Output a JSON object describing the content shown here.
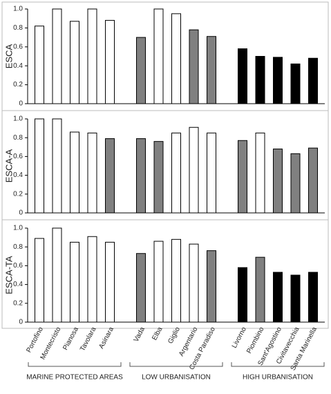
{
  "chart_data": [
    {
      "type": "bar",
      "ylabel": "ESCA",
      "values": [
        [
          0.82,
          1.0,
          0.87,
          1.0,
          0.88
        ],
        [
          0.7,
          1.0,
          0.95,
          0.78,
          0.71
        ],
        [
          0.58,
          0.5,
          0.49,
          0.42,
          0.48
        ]
      ],
      "colors": [
        [
          "#ffffff",
          "#ffffff",
          "#ffffff",
          "#ffffff",
          "#ffffff"
        ],
        [
          "#808080",
          "#ffffff",
          "#ffffff",
          "#808080",
          "#808080"
        ],
        [
          "#000000",
          "#000000",
          "#000000",
          "#000000",
          "#000000"
        ]
      ],
      "ylim": [
        0,
        1
      ],
      "yticks": [
        0,
        0.2,
        0.4,
        0.6,
        0.8,
        {
          "value": 1,
          "label": "1.0"
        }
      ]
    },
    {
      "type": "bar",
      "ylabel": "ESCA-A",
      "values": [
        [
          1.0,
          1.0,
          0.86,
          0.85,
          0.79
        ],
        [
          0.79,
          0.76,
          0.85,
          0.91,
          0.85
        ],
        [
          0.77,
          0.85,
          0.68,
          0.63,
          0.69
        ]
      ],
      "colors": [
        [
          "#ffffff",
          "#ffffff",
          "#ffffff",
          "#ffffff",
          "#808080"
        ],
        [
          "#808080",
          "#808080",
          "#ffffff",
          "#ffffff",
          "#ffffff"
        ],
        [
          "#808080",
          "#ffffff",
          "#808080",
          "#808080",
          "#808080"
        ]
      ],
      "ylim": [
        0,
        1
      ],
      "yticks": [
        0,
        0.2,
        0.4,
        0.6,
        0.8,
        {
          "value": 1,
          "label": "1.0"
        }
      ]
    },
    {
      "type": "bar",
      "ylabel": "ESCA-TA",
      "values": [
        [
          0.89,
          1.0,
          0.85,
          0.91,
          0.85
        ],
        [
          0.73,
          0.86,
          0.88,
          0.83,
          0.76
        ],
        [
          0.58,
          0.69,
          0.53,
          0.5,
          0.53
        ]
      ],
      "colors": [
        [
          "#ffffff",
          "#ffffff",
          "#ffffff",
          "#ffffff",
          "#ffffff"
        ],
        [
          "#808080",
          "#ffffff",
          "#ffffff",
          "#ffffff",
          "#808080"
        ],
        [
          "#000000",
          "#808080",
          "#000000",
          "#000000",
          "#000000"
        ]
      ],
      "ylim": [
        0,
        1
      ],
      "yticks": [
        0,
        0.2,
        0.4,
        0.6,
        0.8,
        {
          "value": 1,
          "label": "1.0"
        }
      ],
      "groups": [
        {
          "label": "MARINE PROTECTED AREAS",
          "categories": [
            "Portofino",
            "Montecristo",
            "Pianosa",
            "Tavolara",
            "Asinara"
          ]
        },
        {
          "label": "LOW URBANISATION",
          "categories": [
            "Vada",
            "Elba",
            "Giglio",
            "Argentario",
            "Costa Paradiso"
          ]
        },
        {
          "label": "HIGH URBANISATION",
          "categories": [
            "Livorno",
            "Piombino",
            "Sant'Agostino",
            "Civitavecchia",
            "Santa Marinella"
          ]
        }
      ]
    }
  ]
}
